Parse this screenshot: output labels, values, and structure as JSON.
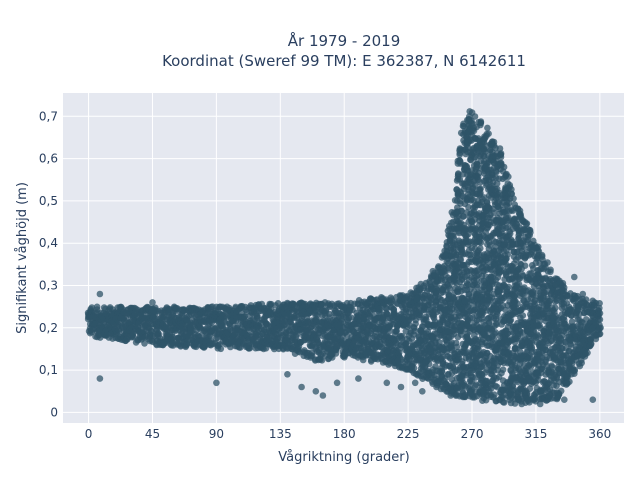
{
  "chart_data": {
    "type": "scatter",
    "title_line1": "År 1979 - 2019",
    "title_line2": "Koordinat (Sweref 99 TM): E 362387, N 6142611",
    "xlabel": "Vågriktning (grader)",
    "ylabel": "Signifikant våghöjd (m)",
    "xlim": [
      -18,
      377
    ],
    "ylim": [
      -0.025,
      0.755
    ],
    "x_ticks": [
      0,
      45,
      90,
      135,
      180,
      225,
      270,
      315,
      360
    ],
    "y_ticks": [
      0,
      0.1,
      0.2,
      0.3,
      0.4,
      0.5,
      0.6,
      0.7
    ],
    "y_tick_labels": [
      "0",
      "0,1",
      "0,2",
      "0,3",
      "0,4",
      "0,5",
      "0,6",
      "0,7"
    ],
    "grid": true,
    "legend": "none",
    "colors": {
      "marker": "#2f5468",
      "plot_background": "#e5e8f0",
      "grid": "#ffffff",
      "text": "#2a3f5f"
    },
    "series_envelope": {
      "description_free": true,
      "upper": [
        [
          0,
          0.25
        ],
        [
          45,
          0.25
        ],
        [
          90,
          0.25
        ],
        [
          135,
          0.26
        ],
        [
          180,
          0.26
        ],
        [
          200,
          0.27
        ],
        [
          225,
          0.28
        ],
        [
          240,
          0.32
        ],
        [
          250,
          0.38
        ],
        [
          258,
          0.52
        ],
        [
          263,
          0.68
        ],
        [
          268,
          0.72
        ],
        [
          272,
          0.71
        ],
        [
          280,
          0.68
        ],
        [
          290,
          0.62
        ],
        [
          300,
          0.5
        ],
        [
          310,
          0.44
        ],
        [
          320,
          0.37
        ],
        [
          330,
          0.32
        ],
        [
          340,
          0.28
        ],
        [
          360,
          0.26
        ]
      ],
      "lower": [
        [
          0,
          0.18
        ],
        [
          45,
          0.16
        ],
        [
          90,
          0.15
        ],
        [
          135,
          0.15
        ],
        [
          160,
          0.12
        ],
        [
          180,
          0.13
        ],
        [
          200,
          0.12
        ],
        [
          225,
          0.1
        ],
        [
          240,
          0.07
        ],
        [
          255,
          0.04
        ],
        [
          270,
          0.03
        ],
        [
          300,
          0.02
        ],
        [
          330,
          0.03
        ],
        [
          360,
          0.18
        ]
      ]
    },
    "outliers": [
      [
        8,
        0.28
      ],
      [
        8,
        0.08
      ],
      [
        45,
        0.26
      ],
      [
        90,
        0.07
      ],
      [
        140,
        0.09
      ],
      [
        150,
        0.06
      ],
      [
        160,
        0.05
      ],
      [
        165,
        0.04
      ],
      [
        175,
        0.07
      ],
      [
        190,
        0.08
      ],
      [
        210,
        0.07
      ],
      [
        220,
        0.06
      ],
      [
        230,
        0.07
      ],
      [
        235,
        0.05
      ],
      [
        245,
        0.06
      ],
      [
        255,
        0.04
      ],
      [
        305,
        0.02
      ],
      [
        310,
        0.03
      ],
      [
        318,
        0.02
      ],
      [
        325,
        0.04
      ],
      [
        335,
        0.03
      ],
      [
        342,
        0.32
      ],
      [
        348,
        0.28
      ],
      [
        355,
        0.03
      ]
    ]
  }
}
